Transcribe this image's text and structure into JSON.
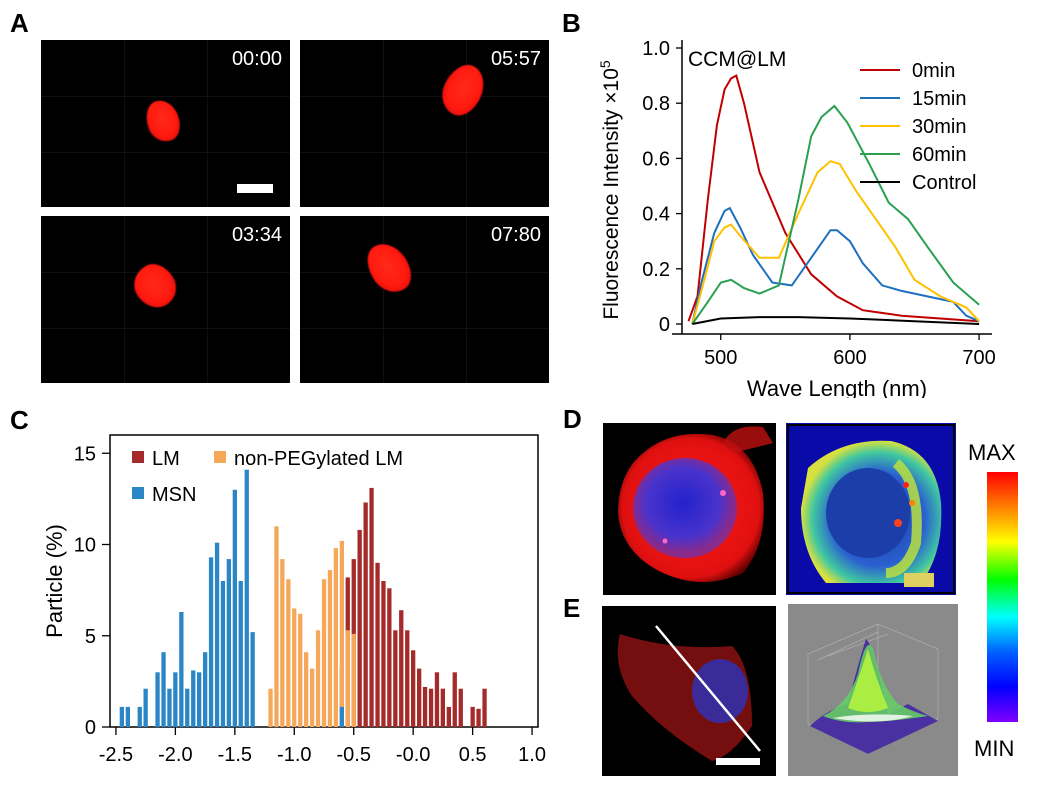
{
  "panels": {
    "A": {
      "letter": "A",
      "frames": [
        {
          "timestamp": "00:00"
        },
        {
          "timestamp": "05:57"
        },
        {
          "timestamp": "03:34"
        },
        {
          "timestamp": "07:80"
        }
      ]
    },
    "B": {
      "letter": "B"
    },
    "C": {
      "letter": "C"
    },
    "D": {
      "letter": "D"
    },
    "E": {
      "letter": "E"
    }
  },
  "colorbar": {
    "max_label": "MAX",
    "min_label": "MIN"
  },
  "chart_data": [
    {
      "id": "B",
      "type": "line",
      "annotation": "CCM@LM",
      "xlabel": "Wave Length (nm)",
      "ylabel": "Fluorescence Intensity ×10",
      "ylabel_sup": "5",
      "xlim": [
        470,
        710
      ],
      "ylim": [
        0,
        1.0
      ],
      "xticks": [
        500,
        600,
        700
      ],
      "xtick_labels": [
        "500",
        "600",
        "700"
      ],
      "yticks": [
        0,
        0.2,
        0.4,
        0.6,
        0.8,
        1.0
      ],
      "ytick_labels": [
        "0",
        "0.2",
        "0.4",
        "0.6",
        "0.8",
        "1.0"
      ],
      "legend_position": "top-right",
      "series": [
        {
          "name": "0min",
          "color": "#c00000",
          "x": [
            475,
            482,
            490,
            497,
            503,
            508,
            512,
            518,
            530,
            550,
            570,
            590,
            610,
            640,
            670,
            700
          ],
          "y": [
            0.01,
            0.1,
            0.45,
            0.72,
            0.85,
            0.89,
            0.9,
            0.8,
            0.55,
            0.33,
            0.18,
            0.1,
            0.05,
            0.03,
            0.02,
            0.01
          ]
        },
        {
          "name": "15min",
          "color": "#1f6fbf",
          "x": [
            478,
            485,
            495,
            503,
            507,
            515,
            525,
            540,
            555,
            570,
            585,
            590,
            600,
            610,
            625,
            640,
            660,
            680,
            690,
            700
          ],
          "y": [
            0.0,
            0.15,
            0.33,
            0.41,
            0.42,
            0.35,
            0.25,
            0.15,
            0.14,
            0.24,
            0.34,
            0.34,
            0.3,
            0.22,
            0.14,
            0.12,
            0.1,
            0.08,
            0.03,
            0.01
          ]
        },
        {
          "name": "30min",
          "color": "#ffc000",
          "x": [
            478,
            485,
            495,
            503,
            508,
            515,
            530,
            545,
            560,
            575,
            585,
            592,
            605,
            620,
            635,
            650,
            670,
            690,
            700
          ],
          "y": [
            0.0,
            0.12,
            0.3,
            0.35,
            0.36,
            0.32,
            0.24,
            0.24,
            0.4,
            0.55,
            0.59,
            0.58,
            0.48,
            0.38,
            0.28,
            0.16,
            0.1,
            0.06,
            0.01
          ]
        },
        {
          "name": "60min",
          "color": "#2aa050",
          "x": [
            478,
            490,
            500,
            508,
            518,
            530,
            545,
            560,
            570,
            578,
            588,
            598,
            615,
            630,
            645,
            660,
            680,
            700
          ],
          "y": [
            0.0,
            0.08,
            0.15,
            0.16,
            0.13,
            0.11,
            0.14,
            0.45,
            0.68,
            0.75,
            0.79,
            0.73,
            0.58,
            0.44,
            0.38,
            0.28,
            0.15,
            0.07
          ]
        },
        {
          "name": "Control",
          "color": "#000000",
          "x": [
            478,
            500,
            530,
            560,
            600,
            650,
            700
          ],
          "y": [
            0.0,
            0.02,
            0.025,
            0.025,
            0.02,
            0.01,
            0.0
          ]
        }
      ]
    },
    {
      "id": "C",
      "type": "bar",
      "ylabel": "Particle (%)",
      "xlim": [
        -2.55,
        1.05
      ],
      "ylim": [
        0,
        16
      ],
      "xticks": [
        -2.5,
        -2.0,
        -1.5,
        -1.0,
        -0.5,
        -0.0,
        0.5,
        1.0
      ],
      "xtick_labels": [
        "-2.5",
        "-2.0",
        "-1.5",
        "-1.0",
        "-0.5",
        "-0.0",
        "0.5",
        "1.0"
      ],
      "yticks": [
        0,
        5,
        10,
        15
      ],
      "ytick_labels": [
        "0",
        "5",
        "10",
        "15"
      ],
      "bin_width": 0.05,
      "legend_position": "top-left",
      "series": [
        {
          "name": "LM",
          "color": "#a52a2a",
          "x": [
            -0.6,
            -0.55,
            -0.5,
            -0.45,
            -0.4,
            -0.35,
            -0.3,
            -0.25,
            -0.2,
            -0.15,
            -0.1,
            -0.05,
            0.0,
            0.05,
            0.1,
            0.15,
            0.2,
            0.25,
            0.3,
            0.35,
            0.4,
            0.45,
            0.5,
            0.55,
            0.6
          ],
          "values": [
            3.2,
            8.2,
            9.2,
            10.8,
            12.3,
            13.1,
            9.0,
            8.0,
            7.6,
            5.3,
            6.4,
            5.3,
            4.2,
            3.2,
            2.2,
            2.1,
            3.0,
            2.1,
            1.1,
            3.0,
            2.1,
            0.0,
            1.1,
            1.0,
            2.1
          ]
        },
        {
          "name": "non-PEGylated LM",
          "color": "#f5a85a",
          "x": [
            -1.2,
            -1.15,
            -1.1,
            -1.05,
            -1.0,
            -0.95,
            -0.9,
            -0.85,
            -0.8,
            -0.75,
            -0.7,
            -0.65,
            -0.6,
            -0.55,
            -0.5
          ],
          "values": [
            2.1,
            11.0,
            9.2,
            8.1,
            6.5,
            6.2,
            4.1,
            3.2,
            5.3,
            8.1,
            8.6,
            9.8,
            10.2,
            5.3,
            5.1
          ]
        },
        {
          "name": "MSN",
          "color": "#2b86c5",
          "x": [
            -2.45,
            -2.4,
            -2.35,
            -2.3,
            -2.25,
            -2.2,
            -2.15,
            -2.1,
            -2.05,
            -2.0,
            -1.95,
            -1.9,
            -1.85,
            -1.8,
            -1.75,
            -1.7,
            -1.65,
            -1.6,
            -1.55,
            -1.5,
            -1.45,
            -1.4,
            -1.35,
            -0.6
          ],
          "values": [
            1.1,
            1.1,
            0.0,
            1.1,
            2.1,
            0.0,
            3.0,
            4.1,
            2.1,
            3.0,
            6.3,
            2.1,
            3.1,
            3.0,
            4.1,
            9.3,
            10.1,
            8.0,
            9.2,
            13.0,
            8.0,
            14.1,
            5.2,
            1.1
          ]
        }
      ]
    }
  ]
}
